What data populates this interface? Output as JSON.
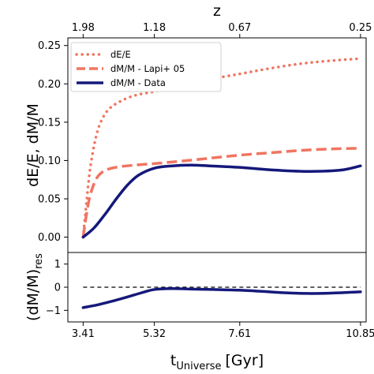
{
  "chart_data": [
    {
      "type": "line",
      "panel": "main",
      "ylabel": "dE/E, dM/M",
      "xlabel": "",
      "top_xlabel": "z",
      "top_ticks": [
        "1.98",
        "1.18",
        "0.67",
        "0.25"
      ],
      "top_tick_t": [
        3.41,
        5.32,
        7.61,
        10.85
      ],
      "xlim": [
        3.0,
        11.0
      ],
      "ylim": [
        -0.02,
        0.26
      ],
      "yticks": [
        "0.00",
        "0.05",
        "0.10",
        "0.15",
        "0.20",
        "0.25"
      ],
      "ytick_values": [
        0.0,
        0.05,
        0.1,
        0.15,
        0.2,
        0.25
      ],
      "grid": false,
      "legend_position": "upper-left",
      "series": [
        {
          "name": "dE/E",
          "style": "dotted",
          "color": "#f07560",
          "x": [
            3.41,
            3.5,
            3.6,
            3.75,
            3.9,
            4.1,
            4.4,
            4.8,
            5.32,
            6.0,
            6.8,
            7.61,
            8.4,
            9.2,
            10.0,
            10.85
          ],
          "y": [
            0.0,
            0.045,
            0.09,
            0.13,
            0.152,
            0.167,
            0.177,
            0.185,
            0.19,
            0.198,
            0.206,
            0.213,
            0.22,
            0.226,
            0.23,
            0.233
          ]
        },
        {
          "name": "dM/M - Lapi+ 05",
          "style": "dashed",
          "color": "#f07560",
          "x": [
            3.41,
            3.5,
            3.6,
            3.75,
            3.9,
            4.1,
            4.4,
            4.8,
            5.32,
            6.0,
            6.8,
            7.61,
            8.4,
            9.2,
            10.0,
            10.85
          ],
          "y": [
            0.0,
            0.03,
            0.055,
            0.075,
            0.084,
            0.089,
            0.092,
            0.094,
            0.096,
            0.099,
            0.103,
            0.107,
            0.11,
            0.113,
            0.115,
            0.116
          ]
        },
        {
          "name": "dM/M - Data",
          "style": "solid",
          "color": "#15197a",
          "x": [
            3.41,
            3.7,
            4.0,
            4.3,
            4.6,
            4.9,
            5.32,
            5.8,
            6.3,
            6.8,
            7.61,
            8.4,
            9.2,
            9.8,
            10.4,
            10.85
          ],
          "y": [
            0.0,
            0.012,
            0.03,
            0.05,
            0.068,
            0.081,
            0.09,
            0.093,
            0.094,
            0.093,
            0.091,
            0.088,
            0.086,
            0.086,
            0.088,
            0.093
          ]
        }
      ]
    },
    {
      "type": "line",
      "panel": "residual",
      "ylabel": "(dM/M)",
      "ylabel_sub": "res",
      "xlabel": "t",
      "xlabel_sub": "Universe",
      "xlabel_unit": "[Gyr]",
      "xticks": [
        "3.41",
        "5.32",
        "7.61",
        "10.85"
      ],
      "xtick_values": [
        3.41,
        5.32,
        7.61,
        10.85
      ],
      "xlim": [
        3.0,
        11.0
      ],
      "ylim": [
        -1.5,
        1.5
      ],
      "yticks": [
        "−1",
        "0",
        "1"
      ],
      "ytick_values": [
        -1,
        0,
        1
      ],
      "reference_line": {
        "y": 0,
        "style": "dashed",
        "color": "#000000"
      },
      "series": [
        {
          "style": "solid",
          "color": "#15197a",
          "x": [
            3.41,
            3.8,
            4.2,
            4.6,
            5.0,
            5.32,
            5.8,
            6.3,
            6.9,
            7.61,
            8.2,
            8.8,
            9.4,
            10.0,
            10.85
          ],
          "y": [
            -0.88,
            -0.76,
            -0.6,
            -0.42,
            -0.23,
            -0.1,
            -0.06,
            -0.08,
            -0.1,
            -0.13,
            -0.18,
            -0.24,
            -0.27,
            -0.26,
            -0.2
          ]
        }
      ]
    }
  ]
}
